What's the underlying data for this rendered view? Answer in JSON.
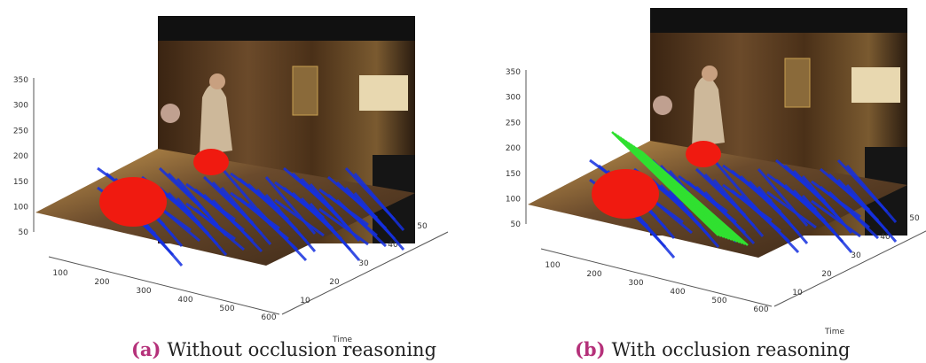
{
  "panels": [
    {
      "label": "(a)",
      "caption": "Without occlusion reasoning",
      "z_ticks": [
        "350",
        "300",
        "250",
        "200",
        "150",
        "100",
        "50"
      ],
      "x_ticks": [
        "100",
        "200",
        "300",
        "400",
        "500",
        "600"
      ],
      "time_ticks": [
        "10",
        "20",
        "30",
        "40",
        "50"
      ],
      "time_label": "Time"
    },
    {
      "label": "(b)",
      "caption": "With occlusion reasoning",
      "z_ticks": [
        "350",
        "300",
        "250",
        "200",
        "150",
        "100",
        "50"
      ],
      "x_ticks": [
        "100",
        "200",
        "300",
        "400",
        "500",
        "600"
      ],
      "time_ticks": [
        "10",
        "20",
        "30",
        "40",
        "50"
      ],
      "time_label": "Time"
    }
  ]
}
